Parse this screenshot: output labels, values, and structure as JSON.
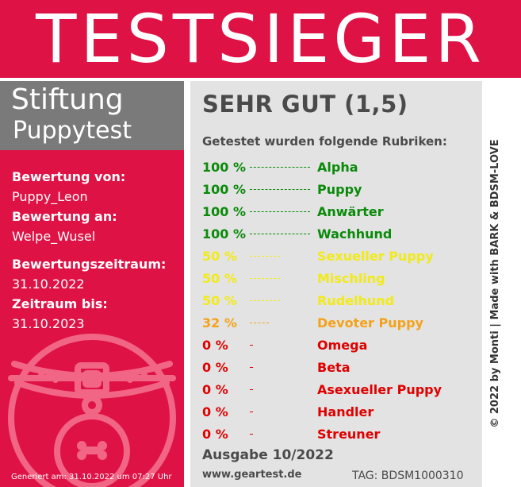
{
  "banner": {
    "title": "TESTSIEGER"
  },
  "org": {
    "line1": "Stiftung",
    "line2": "Puppytest"
  },
  "info": {
    "rating_by_label": "Bewertung von:",
    "rating_by_value": "Puppy_Leon",
    "rating_to_label": "Bewertung an:",
    "rating_to_value": "Welpe_Wusel",
    "period_label": "Bewertungszeitraum:",
    "period_value": "31.10.2022",
    "until_label": "Zeitraum bis:",
    "until_value": "31.10.2023"
  },
  "seal": {
    "icon": "dog-collar-bone-tag-icon"
  },
  "generated": "Generiert am: 31.10.2022 um 07:27 Uhr",
  "result": {
    "grade": "SEHR GUT (1,5)",
    "tested_label": "Getestet wurden folgende Rubriken:",
    "categories": [
      {
        "pct": "100 %",
        "name": "Alpha",
        "value": 100,
        "color": "#0a8a0a"
      },
      {
        "pct": "100 %",
        "name": "Puppy",
        "value": 100,
        "color": "#0a8a0a"
      },
      {
        "pct": "100 %",
        "name": "Anwärter",
        "value": 100,
        "color": "#0a8a0a"
      },
      {
        "pct": "100 %",
        "name": "Wachhund",
        "value": 100,
        "color": "#0a8a0a"
      },
      {
        "pct": "50 %",
        "name": "Sexueller Puppy",
        "value": 50,
        "color": "#f2ea18"
      },
      {
        "pct": "50 %",
        "name": "Mischling",
        "value": 50,
        "color": "#f2ea18"
      },
      {
        "pct": "50 %",
        "name": "Rudelhund",
        "value": 50,
        "color": "#f2ea18"
      },
      {
        "pct": "32 %",
        "name": "Devoter Puppy",
        "value": 32,
        "color": "#f3a21a"
      },
      {
        "pct": "0 %",
        "name": "Omega",
        "value": 0,
        "color": "#e00000"
      },
      {
        "pct": "0 %",
        "name": "Beta",
        "value": 0,
        "color": "#e00000"
      },
      {
        "pct": "0 %",
        "name": "Asexueller Puppy",
        "value": 0,
        "color": "#e00000"
      },
      {
        "pct": "0 %",
        "name": "Handler",
        "value": 0,
        "color": "#e00000"
      },
      {
        "pct": "0 %",
        "name": "Streuner",
        "value": 0,
        "color": "#e00000"
      }
    ],
    "issue": "Ausgabe 10/2022",
    "url": "www.geartest.de",
    "tag": "TAG: BDSM1000310"
  },
  "side": {
    "copyright": "© 2022 by Monti | Made with BARK & BDSM-LOVE"
  },
  "colors": {
    "accent": "#df1245",
    "gray_box": "#7a7a7a",
    "panel": "#e3e3e3"
  }
}
